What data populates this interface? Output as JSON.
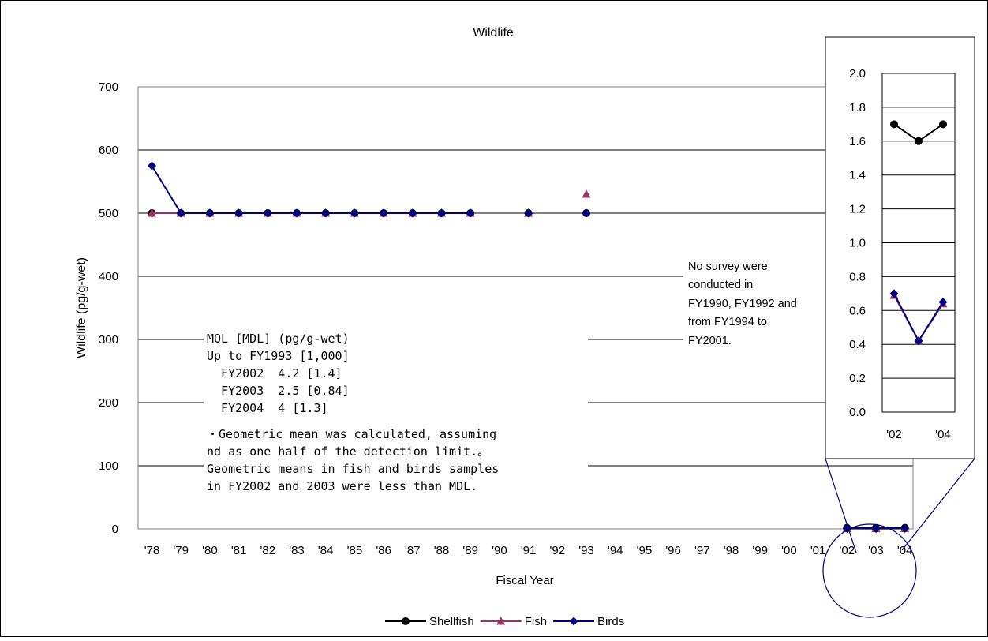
{
  "chart_data": [
    {
      "type": "line",
      "title": "Wildlife",
      "xlabel": "Fiscal Year",
      "ylabel": "Wildlife (pg/g-wet)",
      "ylim": [
        0,
        700
      ],
      "yticks": [
        0,
        100,
        200,
        300,
        400,
        500,
        600,
        700
      ],
      "grid": true,
      "legend_position": "bottom",
      "categories": [
        "'78",
        "'79",
        "'80",
        "'81",
        "'82",
        "'83",
        "'84",
        "'85",
        "'86",
        "'87",
        "'88",
        "'89",
        "'90",
        "'91",
        "'92",
        "'93",
        "'94",
        "'95",
        "'96",
        "'97",
        "'98",
        "'99",
        "'00",
        "'01",
        "'02",
        "'03",
        "'04"
      ],
      "series": [
        {
          "name": "Shellfish",
          "color": "#000000",
          "marker": "circle",
          "values": [
            500,
            500,
            500,
            500,
            500,
            500,
            500,
            500,
            500,
            500,
            500,
            500,
            null,
            500,
            null,
            500,
            null,
            null,
            null,
            null,
            null,
            null,
            null,
            null,
            1.7,
            1.6,
            1.7
          ]
        },
        {
          "name": "Fish",
          "color": "#993366",
          "marker": "triangle",
          "values": [
            500,
            500,
            500,
            500,
            500,
            500,
            500,
            500,
            500,
            500,
            500,
            500,
            null,
            500,
            null,
            530,
            null,
            null,
            null,
            null,
            null,
            null,
            null,
            null,
            0.69,
            0.42,
            0.64
          ]
        },
        {
          "name": "Birds",
          "color": "#000080",
          "marker": "diamond",
          "values": [
            575,
            500,
            500,
            500,
            500,
            500,
            500,
            500,
            500,
            500,
            500,
            500,
            null,
            500,
            null,
            500,
            null,
            null,
            null,
            null,
            null,
            null,
            null,
            null,
            0.7,
            0.42,
            0.65
          ]
        }
      ],
      "annotations": {
        "note_box": [
          "MQL [MDL] (pg/g-wet)",
          "Up to FY1993 [1,000]",
          "  FY2002  4.2 [1.4]",
          "  FY2003  2.5 [0.84]",
          "  FY2004  4 [1.3]",
          "・Geometric mean was calculated, assuming",
          "nd as one half of the detection limit.。",
          "Geometric means in fish and birds samples",
          "in FY2002 and 2003 were less than MDL."
        ],
        "survey_note": [
          "No survey were",
          "conducted in",
          "FY1990, FY1992 and",
          "from FY1994 to",
          "FY2001."
        ]
      }
    },
    {
      "type": "line",
      "title": "",
      "ylim": [
        0,
        2.0
      ],
      "yticks": [
        "0.0",
        "0.2",
        "0.4",
        "0.6",
        "0.8",
        "1.0",
        "1.2",
        "1.4",
        "1.6",
        "1.8",
        "2.0"
      ],
      "grid": true,
      "categories": [
        "'02",
        "'03",
        "'04"
      ],
      "xtick_labels": [
        "'02",
        "",
        "'04"
      ],
      "series": [
        {
          "name": "Shellfish",
          "color": "#000000",
          "marker": "circle",
          "values": [
            1.7,
            1.6,
            1.7
          ]
        },
        {
          "name": "Fish",
          "color": "#993366",
          "marker": "triangle",
          "values": [
            0.69,
            0.42,
            0.64
          ]
        },
        {
          "name": "Birds",
          "color": "#000080",
          "marker": "diamond",
          "values": [
            0.7,
            0.42,
            0.65
          ]
        }
      ]
    }
  ]
}
